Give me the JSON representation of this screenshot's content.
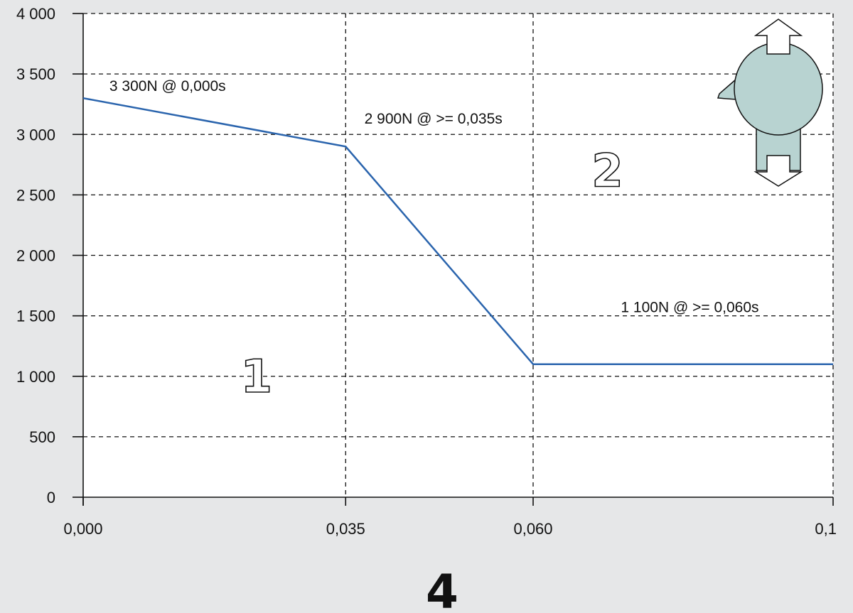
{
  "chart_data": {
    "type": "line",
    "title": "",
    "xlabel": "",
    "ylabel": "",
    "x_ticks": [
      "0,000",
      "0,035",
      "0,060",
      "0,1"
    ],
    "x_tick_values": [
      0,
      0.035,
      0.06,
      0.1
    ],
    "y_ticks": [
      "0",
      "500",
      "1 000",
      "1 500",
      "2 000",
      "2 500",
      "3 000",
      "3 500",
      "4 000"
    ],
    "y_tick_values": [
      0,
      500,
      1000,
      1500,
      2000,
      2500,
      3000,
      3500,
      4000
    ],
    "xlim": [
      0,
      0.1
    ],
    "ylim": [
      0,
      4000
    ],
    "grid": true,
    "grid_style": "dashed",
    "series": [
      {
        "x": [
          0,
          0.035,
          0.06,
          0.1
        ],
        "y": [
          3300,
          2900,
          1100,
          1100
        ],
        "color": "#2a64ad"
      }
    ],
    "annotations": [
      {
        "text": "3 300N @ 0,000s",
        "x": 0.0035,
        "y": 3400
      },
      {
        "text": "2 900N @ >= 0,035s",
        "x": 0.0375,
        "y": 3130
      },
      {
        "text": "1 100N @ >= 0,060s",
        "x": 0.0717,
        "y": 1570
      }
    ],
    "zone_labels": [
      {
        "text": "1",
        "x": 0.021,
        "y": 1000
      },
      {
        "text": "2",
        "x": 0.0678,
        "y": 2700
      }
    ]
  },
  "figure_number": "4",
  "icon": {
    "name": "head-up-down-arrows-icon",
    "fill": "#b8d3d1"
  }
}
